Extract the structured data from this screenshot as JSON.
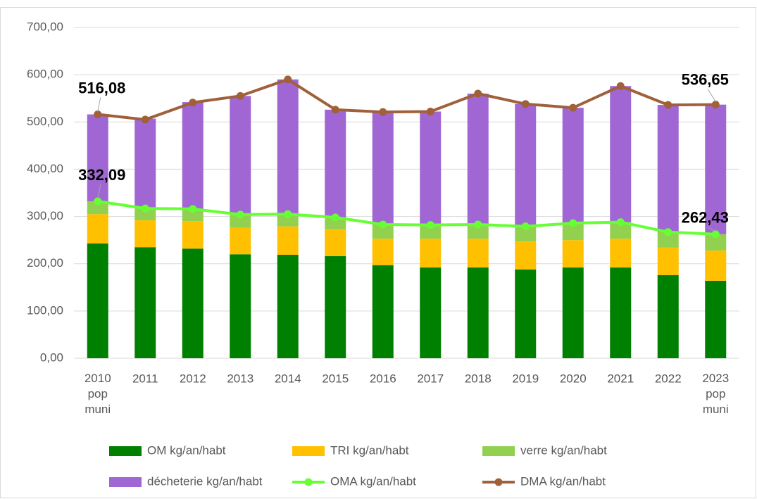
{
  "chart_data": {
    "type": "bar",
    "stacked": true,
    "categories": [
      "2010\npop\nmuni",
      "2011",
      "2012",
      "2013",
      "2014",
      "2015",
      "2016",
      "2017",
      "2018",
      "2019",
      "2020",
      "2021",
      "2022",
      "2023\npop\nmuni"
    ],
    "series": [
      {
        "name": "OM kg/an/habt",
        "color": "#008000",
        "values": [
          243,
          235,
          232,
          220,
          219,
          216,
          197,
          192,
          192,
          188,
          192,
          192,
          176,
          164
        ]
      },
      {
        "name": "TRI kg/an/habt",
        "color": "#ffc000",
        "values": [
          62,
          57,
          58,
          57,
          60,
          57,
          56,
          61,
          61,
          59,
          58,
          61,
          58,
          64
        ]
      },
      {
        "name": "verre kg/an/habt",
        "color": "#92d050",
        "values": [
          27,
          25,
          26,
          27,
          26,
          25,
          30,
          29,
          30,
          32,
          36,
          35,
          33,
          34.43
        ]
      },
      {
        "name": "décheterie kg/an/habt",
        "color": "#a066d3",
        "values": [
          184,
          190,
          226,
          251,
          285,
          228,
          238,
          240,
          277,
          259,
          244,
          288,
          269,
          274.22
        ]
      },
      {
        "name": "OMA kg/an/habt",
        "type": "line",
        "color": "#66ff33",
        "values": [
          332.09,
          317,
          316,
          304,
          305,
          298,
          283,
          282,
          283,
          279,
          286,
          288,
          267,
          262.43
        ],
        "value_labels": [
          "332,09",
          null,
          null,
          null,
          null,
          null,
          null,
          null,
          null,
          null,
          null,
          null,
          null,
          "262,43"
        ]
      },
      {
        "name": "DMA kg/an/habt",
        "type": "line",
        "color": "#a0603a",
        "values": [
          516.08,
          505,
          541,
          555,
          590,
          526,
          521,
          522,
          560,
          538,
          530,
          576,
          536,
          536.65
        ],
        "value_labels": [
          "516,08",
          null,
          null,
          null,
          null,
          null,
          null,
          null,
          null,
          null,
          null,
          null,
          null,
          "536,65"
        ]
      }
    ],
    "ylim": [
      0,
      700
    ],
    "yticks": [
      {
        "value": 0,
        "label": "0,00"
      },
      {
        "value": 100,
        "label": "100,00"
      },
      {
        "value": 200,
        "label": "200,00"
      },
      {
        "value": 300,
        "label": "300,00"
      },
      {
        "value": 400,
        "label": "400,00"
      },
      {
        "value": 500,
        "label": "500,00"
      },
      {
        "value": 600,
        "label": "600,00"
      },
      {
        "value": 700,
        "label": "700,00"
      }
    ],
    "grid": true,
    "legend": "bottom"
  }
}
